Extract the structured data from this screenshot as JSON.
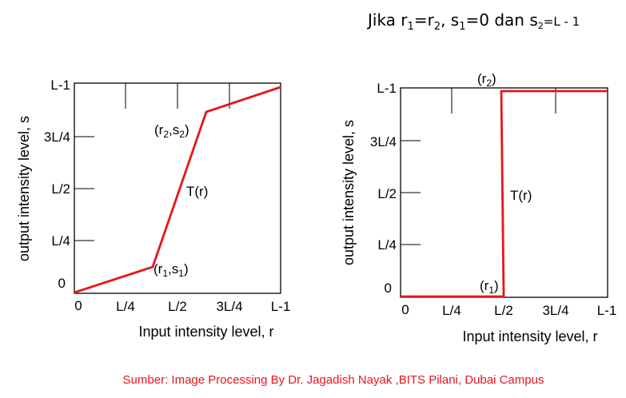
{
  "heading": {
    "prefix": "Jika r",
    "r1_sub": "1",
    "eq1": "=r",
    "r2_sub": "2",
    "sep": ", s",
    "s1_sub": "1",
    "mid": "=0 dan s",
    "s2_sub": "2",
    "tail": "=L - 1"
  },
  "source_note": "Sumber: Image Processing By Dr. Jagadish Nayak ,BITS Pilani, Dubai Campus",
  "colors": {
    "curve": "#e8141c",
    "axes": "#000000",
    "source_note": "#e8141c"
  },
  "charts": [
    {
      "type": "line",
      "xlabel": "Input intensity level, r",
      "ylabel": "output intensity level, s",
      "x_ticks": [
        "0",
        "L/4",
        "L/2",
        "3L/4",
        "L-1"
      ],
      "y_ticks": [
        "0",
        "L/4",
        "L/2",
        "3L/4",
        "L-1"
      ],
      "curve_label": "T(r)",
      "annotations": {
        "r1s1": {
          "open": "(r",
          "sub_a": "1",
          "mid": ",s",
          "sub_b": "1",
          "close": ")"
        },
        "r2s2": {
          "open": "(r",
          "sub_a": "2",
          "mid": ",s",
          "sub_b": "2",
          "close": ")"
        }
      }
    },
    {
      "type": "line",
      "xlabel": "Input intensity level, r",
      "ylabel": "output intensity level, s",
      "x_ticks": [
        "0",
        "L/4",
        "L/2",
        "3L/4",
        "L-1"
      ],
      "y_ticks": [
        "0",
        "L/4",
        "L/2",
        "3L/4",
        "L-1"
      ],
      "curve_label": "T(r)",
      "annotations": {
        "r1": {
          "open": "(r",
          "sub": "1",
          "close": ")"
        },
        "r2": {
          "open": "(r",
          "sub": "2",
          "close": ")"
        }
      }
    }
  ],
  "chart_data": [
    {
      "type": "line",
      "x": [
        "0",
        "r1",
        "r2",
        "L-1"
      ],
      "y": [
        "0",
        "s1",
        "s2",
        "L-1"
      ],
      "x_values_fraction_of_L": [
        0,
        0.38,
        0.66,
        1.0
      ],
      "y_values_fraction_of_L": [
        0,
        0.12,
        0.85,
        1.0
      ],
      "xlim": [
        "0",
        "L-1"
      ],
      "ylim": [
        "0",
        "L-1"
      ],
      "xlabel": "Input intensity level, r",
      "ylabel": "output intensity level, s",
      "series": [
        {
          "name": "T(r)"
        }
      ]
    },
    {
      "type": "line",
      "x": [
        "0",
        "r1",
        "r2",
        "L-1"
      ],
      "y": [
        "0",
        "0",
        "L-1",
        "L-1"
      ],
      "x_values_fraction_of_L": [
        0,
        0.49,
        0.49,
        1.0
      ],
      "y_values_fraction_of_L": [
        0,
        0,
        0.98,
        0.98
      ],
      "xlim": [
        "0",
        "L-1"
      ],
      "ylim": [
        "0",
        "L-1"
      ],
      "xlabel": "Input intensity level, r",
      "ylabel": "output intensity level, s",
      "series": [
        {
          "name": "T(r)"
        }
      ]
    }
  ]
}
